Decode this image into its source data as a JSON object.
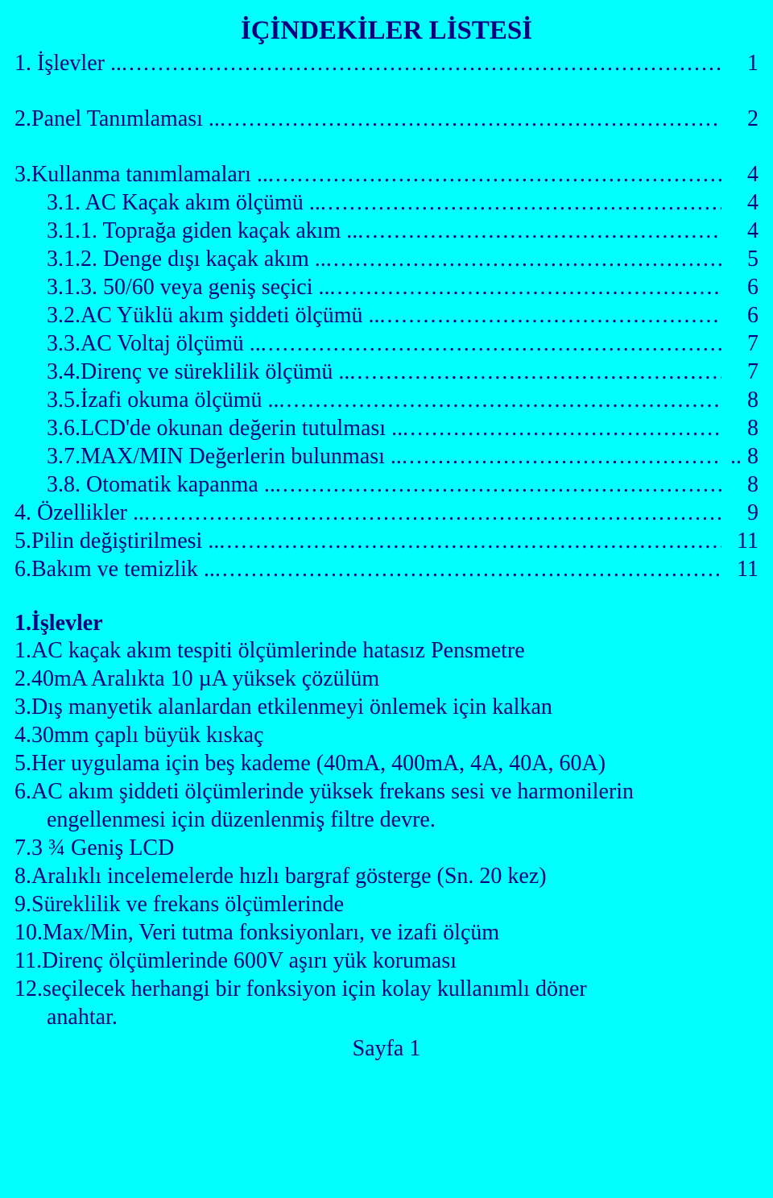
{
  "colors": {
    "background": "#00ffff",
    "text": "#000080"
  },
  "typography": {
    "font_family": "Times New Roman",
    "title_fontsize_pt": 25,
    "body_fontsize_pt": 21,
    "title_weight": "bold",
    "section_weight": "bold"
  },
  "title": "İÇİNDEKİLER LİSTESİ",
  "toc": [
    {
      "label": "1. İşlevler ..",
      "page": "1",
      "indent": 0,
      "space_before": false
    },
    {
      "label": "2.Panel Tanımlaması ..",
      "page": "2",
      "indent": 0,
      "space_before": true
    },
    {
      "label": "3.Kullanma tanımlamaları ..",
      "page": "4",
      "indent": 0,
      "space_before": true
    },
    {
      "label": "3.1. AC Kaçak akım ölçümü ..",
      "page": "4",
      "indent": 1,
      "space_before": false
    },
    {
      "label": "3.1.1. Toprağa giden kaçak akım ..",
      "page": "4",
      "indent": 1,
      "space_before": false
    },
    {
      "label": "3.1.2. Denge dışı kaçak akım ..",
      "page": "5",
      "indent": 1,
      "space_before": false
    },
    {
      "label": "3.1.3. 50/60 veya geniş seçici ..",
      "page": "6",
      "indent": 1,
      "space_before": false
    },
    {
      "label": "3.2.AC Yüklü akım şiddeti ölçümü ..",
      "page": "6",
      "indent": 1,
      "space_before": false
    },
    {
      "label": "3.3.AC Voltaj ölçümü ..",
      "page": "7",
      "indent": 1,
      "space_before": false
    },
    {
      "label": "3.4.Direnç ve süreklilik ölçümü ..",
      "page": "7",
      "indent": 1,
      "space_before": false
    },
    {
      "label": "3.5.İzafi okuma ölçümü ..",
      "page": "8",
      "indent": 1,
      "space_before": false
    },
    {
      "label": "3.6.LCD'de okunan değerin tutulması ..",
      "page": "8",
      "indent": 1,
      "space_before": false
    },
    {
      "label": "3.7.MAX/MIN Değerlerin bulunması ..",
      "page": ".. 8",
      "indent": 1,
      "space_before": false
    },
    {
      "label": "3.8. Otomatik kapanma ..",
      "page": "8",
      "indent": 1,
      "space_before": false
    },
    {
      "label": "4. Özellikler ..",
      "page": "9",
      "indent": 0,
      "space_before": false
    },
    {
      "label": "5.Pilin değiştirilmesi ..",
      "page": "11",
      "indent": 0,
      "space_before": false
    },
    {
      "label": "6.Bakım ve temizlik ..",
      "page": "11",
      "indent": 0,
      "space_before": false
    }
  ],
  "section": {
    "title": "1.İşlevler",
    "items": [
      {
        "lines": [
          "1.AC kaçak akım tespiti ölçümlerinde hatasız Pensmetre"
        ]
      },
      {
        "lines": [
          "2.40mA Aralıkta 10 µA yüksek çözülüm"
        ]
      },
      {
        "lines": [
          "3.Dış manyetik alanlardan etkilenmeyi önlemek için kalkan"
        ]
      },
      {
        "lines": [
          "4.30mm çaplı büyük kıskaç"
        ]
      },
      {
        "lines": [
          "5.Her uygulama için beş kademe (40mA, 400mA, 4A, 40A, 60A)"
        ]
      },
      {
        "lines": [
          "6.AC akım şiddeti ölçümlerinde yüksek frekans sesi ve harmonilerin",
          "engellenmesi için düzenlenmiş filtre devre."
        ]
      },
      {
        "lines": [
          "7.3 ¾  Geniş LCD"
        ]
      },
      {
        "lines": [
          "8.Aralıklı incelemelerde hızlı bargraf gösterge (Sn. 20 kez)"
        ]
      },
      {
        "lines": [
          "9.Süreklilik ve frekans ölçümlerinde"
        ]
      },
      {
        "lines": [
          "10.Max/Min, Veri tutma fonksiyonları, ve izafi ölçüm"
        ]
      },
      {
        "lines": [
          "11.Direnç ölçümlerinde 600V aşırı yük koruması"
        ]
      },
      {
        "lines": [
          "12.seçilecek herhangi bir fonksiyon için kolay kullanımlı döner",
          "anahtar."
        ]
      }
    ]
  },
  "footer": "Sayfa 1"
}
